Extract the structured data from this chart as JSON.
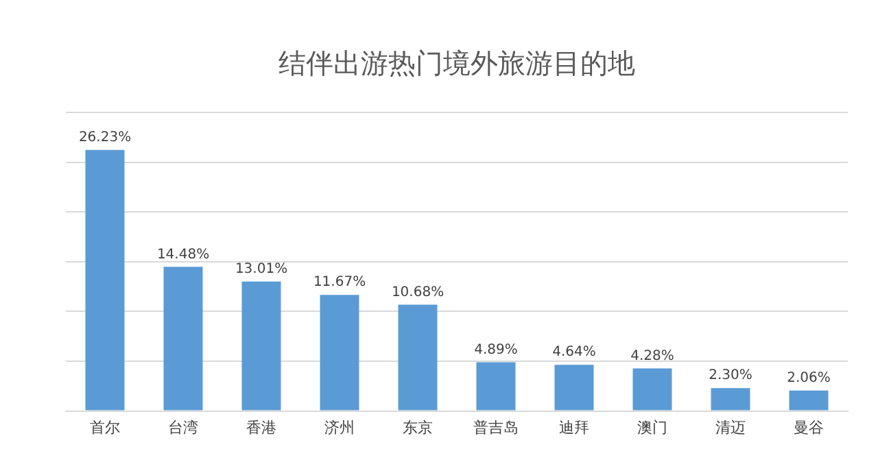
{
  "chart_data": {
    "type": "bar",
    "title": "结伴出游热门境外旅游目的地",
    "categories": [
      "首尔",
      "台湾",
      "香港",
      "济州",
      "东京",
      "普吉岛",
      "迪拜",
      "澳门",
      "清迈",
      "曼谷"
    ],
    "values": [
      26.23,
      14.48,
      13.01,
      11.67,
      10.68,
      4.89,
      4.64,
      4.28,
      2.3,
      2.06
    ],
    "value_labels": [
      "26.23%",
      "14.48%",
      "13.01%",
      "11.67%",
      "10.68%",
      "4.89%",
      "4.64%",
      "4.28%",
      "2.30%",
      "2.06%"
    ],
    "color": "#5b9bd5",
    "ylim": [
      0,
      30
    ],
    "yticks": [
      {
        "value": 0,
        "label": null
      },
      {
        "value": 5,
        "label": null
      },
      {
        "value": 10,
        "label": null
      },
      {
        "value": 15,
        "label": null
      },
      {
        "value": 20,
        "label": null
      },
      {
        "value": 25,
        "label": null
      },
      {
        "value": 30,
        "label": null
      }
    ],
    "tick_labels": "x",
    "grid": "y"
  }
}
